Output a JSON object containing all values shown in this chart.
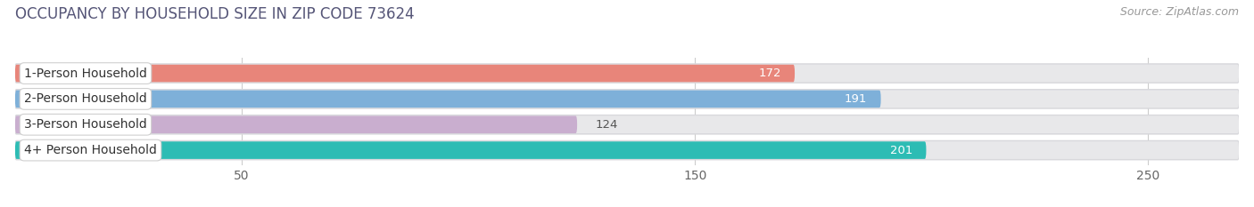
{
  "title": "OCCUPANCY BY HOUSEHOLD SIZE IN ZIP CODE 73624",
  "source": "Source: ZipAtlas.com",
  "categories": [
    "1-Person Household",
    "2-Person Household",
    "3-Person Household",
    "4+ Person Household"
  ],
  "values": [
    172,
    191,
    124,
    201
  ],
  "bar_colors": [
    "#E8857A",
    "#7EB0D9",
    "#C9AECF",
    "#2DBCB4"
  ],
  "label_colors": [
    "white",
    "white",
    "#666666",
    "white"
  ],
  "xlim": [
    0,
    270
  ],
  "xticks": [
    50,
    150,
    250
  ],
  "bar_height": 0.68,
  "background_color": "#ffffff",
  "bar_bg_color": "#e8e8ea",
  "bar_bg_border": "#d8d8dc",
  "title_fontsize": 12,
  "label_fontsize": 10,
  "value_fontsize": 9.5,
  "source_fontsize": 9
}
